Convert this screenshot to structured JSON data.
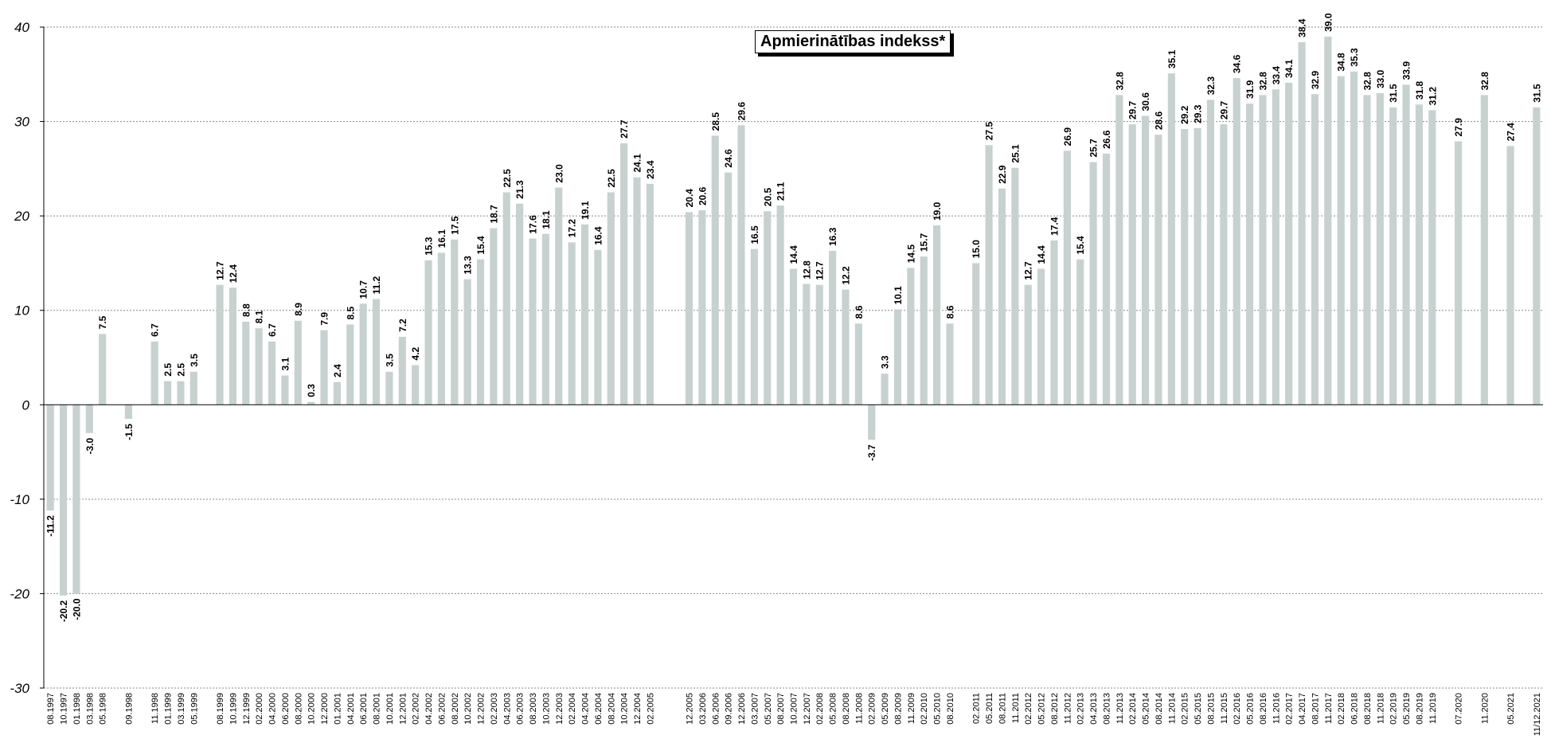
{
  "chart_data": {
    "type": "bar",
    "title": "Apmierinātības indekss*",
    "xlabel": "",
    "ylabel": "",
    "ylim": [
      -30,
      40
    ],
    "yticks": [
      40,
      30,
      20,
      10,
      0,
      -10,
      -20,
      -30
    ],
    "grid": true,
    "bar_color": "#c7d2d0",
    "points": [
      {
        "x": "08.1997",
        "y": -11.2
      },
      {
        "x": "10.1997",
        "y": -20.2
      },
      {
        "x": "01.1998",
        "y": -20.0
      },
      {
        "x": "03.1998",
        "y": -3.0
      },
      {
        "x": "05.1998",
        "y": 7.5
      },
      {
        "x": "",
        "y": null
      },
      {
        "x": "09.1998",
        "y": -1.5
      },
      {
        "x": "",
        "y": null
      },
      {
        "x": "11.1998",
        "y": 6.7
      },
      {
        "x": "01.1999",
        "y": 2.5
      },
      {
        "x": "03.1999",
        "y": 2.5
      },
      {
        "x": "05.1999",
        "y": 3.5
      },
      {
        "x": "",
        "y": null
      },
      {
        "x": "08.1999",
        "y": 12.7
      },
      {
        "x": "10.1999",
        "y": 12.4
      },
      {
        "x": "12.1999",
        "y": 8.8
      },
      {
        "x": "02.2000",
        "y": 8.1
      },
      {
        "x": "04.2000",
        "y": 6.7
      },
      {
        "x": "06.2000",
        "y": 3.1
      },
      {
        "x": "08.2000",
        "y": 8.9
      },
      {
        "x": "10.2000",
        "y": 0.3
      },
      {
        "x": "12.2000",
        "y": 7.9
      },
      {
        "x": "01.2001",
        "y": 2.4
      },
      {
        "x": "04.2001",
        "y": 8.5
      },
      {
        "x": "06.2001",
        "y": 10.7
      },
      {
        "x": "08.2001",
        "y": 11.2
      },
      {
        "x": "10.2001",
        "y": 3.5
      },
      {
        "x": "12.2001",
        "y": 7.2
      },
      {
        "x": "02.2002",
        "y": 4.2
      },
      {
        "x": "04.2002",
        "y": 15.3
      },
      {
        "x": "06.2002",
        "y": 16.1
      },
      {
        "x": "08.2002",
        "y": 17.5
      },
      {
        "x": "10.2002",
        "y": 13.3
      },
      {
        "x": "12.2002",
        "y": 15.4
      },
      {
        "x": "02.2003",
        "y": 18.7
      },
      {
        "x": "04.2003",
        "y": 22.5
      },
      {
        "x": "06.2003",
        "y": 21.3
      },
      {
        "x": "08.2003",
        "y": 17.6
      },
      {
        "x": "10.2003",
        "y": 18.1
      },
      {
        "x": "12.2003",
        "y": 23.0
      },
      {
        "x": "02.2004",
        "y": 17.2
      },
      {
        "x": "04.2004",
        "y": 19.1
      },
      {
        "x": "06.2004",
        "y": 16.4
      },
      {
        "x": "08.2004",
        "y": 22.5
      },
      {
        "x": "10.2004",
        "y": 27.7
      },
      {
        "x": "12.2004",
        "y": 24.1
      },
      {
        "x": "02.2005",
        "y": 23.4
      },
      {
        "x": "",
        "y": null
      },
      {
        "x": "",
        "y": null
      },
      {
        "x": "12.2005",
        "y": 20.4
      },
      {
        "x": "03.2006",
        "y": 20.6
      },
      {
        "x": "06.2006",
        "y": 28.5
      },
      {
        "x": "09.2006",
        "y": 24.6
      },
      {
        "x": "12.2006",
        "y": 29.6
      },
      {
        "x": "03.2007",
        "y": 16.5
      },
      {
        "x": "05.2007",
        "y": 20.5
      },
      {
        "x": "08.2007",
        "y": 21.1
      },
      {
        "x": "10.2007",
        "y": 14.4
      },
      {
        "x": "12.2007",
        "y": 12.8
      },
      {
        "x": "02.2008",
        "y": 12.7
      },
      {
        "x": "05.2008",
        "y": 16.3
      },
      {
        "x": "08.2008",
        "y": 12.2
      },
      {
        "x": "11.2008",
        "y": 8.6
      },
      {
        "x": "02.2009",
        "y": -3.7
      },
      {
        "x": "05.2009",
        "y": 3.3
      },
      {
        "x": "08.2009",
        "y": 10.1
      },
      {
        "x": "11.2009",
        "y": 14.5
      },
      {
        "x": "02.2010",
        "y": 15.7
      },
      {
        "x": "05.2010",
        "y": 19.0
      },
      {
        "x": "08.2010",
        "y": 8.6
      },
      {
        "x": "",
        "y": null
      },
      {
        "x": "02.2011",
        "y": 15.0
      },
      {
        "x": "05.2011",
        "y": 27.5
      },
      {
        "x": "08.2011",
        "y": 22.9
      },
      {
        "x": "11.2011",
        "y": 25.1
      },
      {
        "x": "02.2012",
        "y": 12.7
      },
      {
        "x": "05.2012",
        "y": 14.4
      },
      {
        "x": "08.2012",
        "y": 17.4
      },
      {
        "x": "11.2012",
        "y": 26.9
      },
      {
        "x": "02.2013",
        "y": 15.4
      },
      {
        "x": "04.2013",
        "y": 25.7
      },
      {
        "x": "08.2013",
        "y": 26.6
      },
      {
        "x": "11.2013",
        "y": 32.8
      },
      {
        "x": "02.2014",
        "y": 29.7
      },
      {
        "x": "05.2014",
        "y": 30.6
      },
      {
        "x": "08.2014",
        "y": 28.6
      },
      {
        "x": "11.2014",
        "y": 35.1
      },
      {
        "x": "02.2015",
        "y": 29.2
      },
      {
        "x": "05.2015",
        "y": 29.3
      },
      {
        "x": "08.2015",
        "y": 32.3
      },
      {
        "x": "11.2015",
        "y": 29.7
      },
      {
        "x": "02.2016",
        "y": 34.6
      },
      {
        "x": "05.2016",
        "y": 31.9
      },
      {
        "x": "08.2016",
        "y": 32.8
      },
      {
        "x": "11.2016",
        "y": 33.4
      },
      {
        "x": "02.2017",
        "y": 34.1
      },
      {
        "x": "04.2017",
        "y": 38.4
      },
      {
        "x": "08.2017",
        "y": 32.9
      },
      {
        "x": "11.2017",
        "y": 39.0
      },
      {
        "x": "02.2018",
        "y": 34.8
      },
      {
        "x": "06.2018",
        "y": 35.3
      },
      {
        "x": "08.2018",
        "y": 32.8
      },
      {
        "x": "11.2018",
        "y": 33.0
      },
      {
        "x": "02.2019",
        "y": 31.5
      },
      {
        "x": "05.2019",
        "y": 33.9
      },
      {
        "x": "08.2019",
        "y": 31.8
      },
      {
        "x": "11.2019",
        "y": 31.2
      },
      {
        "x": "",
        "y": null
      },
      {
        "x": "07.2020",
        "y": 27.9
      },
      {
        "x": "",
        "y": null
      },
      {
        "x": "11.2020",
        "y": 32.8
      },
      {
        "x": "",
        "y": null
      },
      {
        "x": "05.2021",
        "y": 27.4
      },
      {
        "x": "",
        "y": null
      },
      {
        "x": "11/12.2021",
        "y": 31.5
      }
    ]
  }
}
